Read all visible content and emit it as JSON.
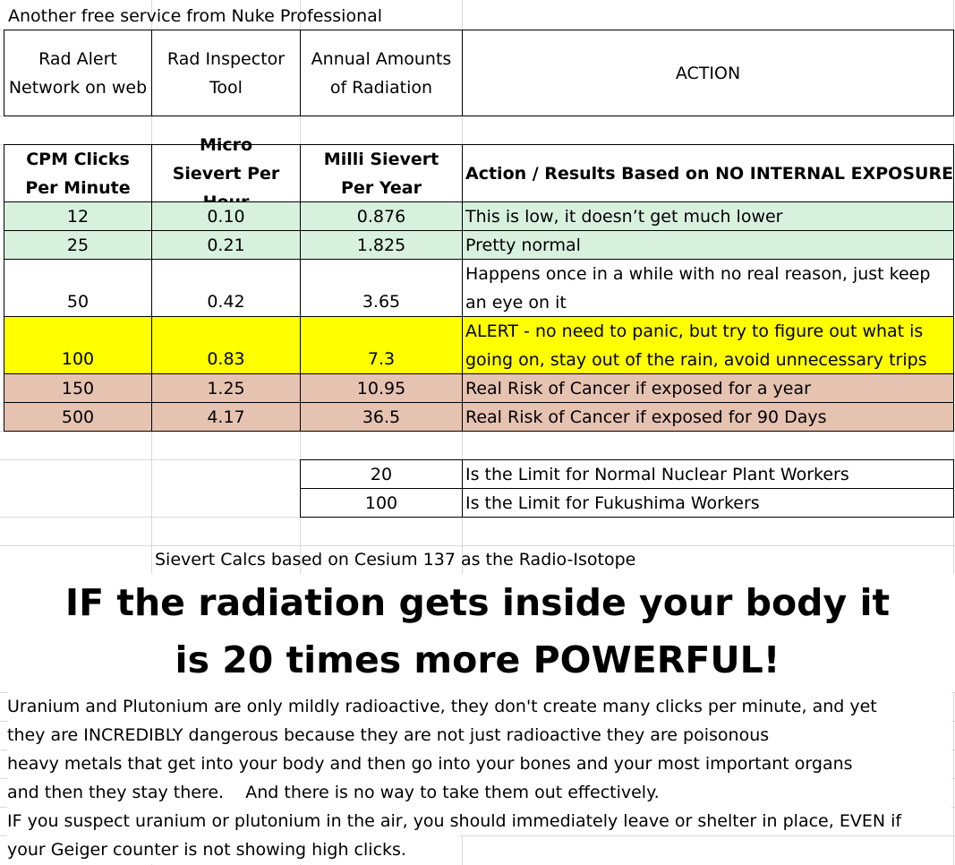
{
  "top_note": "Another free service from Nuke Professional",
  "header_row": [
    "Rad Alert Network on web",
    "Rad Inspector Tool",
    "Annual Amounts of Radiation",
    "ACTION"
  ],
  "table_header": {
    "cpm": "CPM Clicks Per Minute",
    "usv": "Micro Sievert Per Hour",
    "msv": "Milli Sievert Per Year",
    "action": "Action / Results Based on NO INTERNAL EXPOSURE"
  },
  "rows": [
    {
      "cpm": "12",
      "usv": "0.10",
      "msv": "0.876",
      "action": "This is low, it doesn’t get much lower",
      "color": "#d8f1df"
    },
    {
      "cpm": "25",
      "usv": "0.21",
      "msv": "1.825",
      "action": "Pretty normal",
      "color": "#d8f1df"
    },
    {
      "cpm": "50",
      "usv": "0.42",
      "msv": "3.65",
      "action": "Happens once in a while with no real reason, just keep an eye on it",
      "color": "#ffffff"
    },
    {
      "cpm": "100",
      "usv": "0.83",
      "msv": "7.3",
      "action": "ALERT - no need to panic, but try to figure out what is going on, stay out of the rain, avoid unnecessary trips",
      "color": "#ffff00"
    },
    {
      "cpm": "150",
      "usv": "1.25",
      "msv": "10.95",
      "action": "Real Risk of  Cancer if exposed for a year",
      "color": "#e6c2b1"
    },
    {
      "cpm": "500",
      "usv": "4.17",
      "msv": "36.5",
      "action": "Real Risk of Cancer if exposed for 90 Days",
      "color": "#e6c2b1"
    }
  ],
  "limits": [
    {
      "value": "20",
      "label": "Is the Limit for Normal Nuclear Plant Workers"
    },
    {
      "value": "100",
      "label": "Is the Limit for Fukushima Workers"
    }
  ],
  "calc_note": "Sievert Calcs based on Cesium 137 as the Radio-Isotope",
  "headline": "IF the radiation gets inside your body it is 20 times more POWERFUL!",
  "paragraph_lines": [
    "Uranium and Plutonium are only mildly radioactive, they don't create many clicks per minute, and yet",
    "they are INCREDIBLY dangerous because they are not just radioactive they are poisonous",
    "heavy metals that get into your body and then go into your bones and your most important organs",
    "and then they stay there.    And there is no way to take them out effectively.",
    "IF you suspect uranium or plutonium in the air, you should immediately leave or shelter in place, EVEN if",
    "your Geiger counter is not showing high clicks."
  ]
}
